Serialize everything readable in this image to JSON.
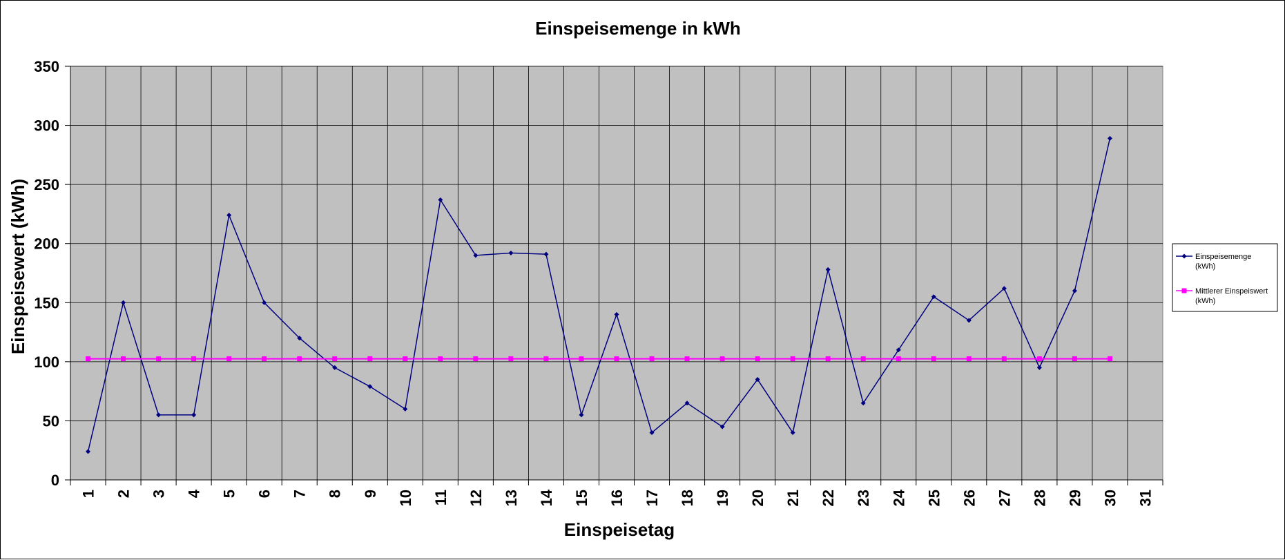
{
  "chart_data": {
    "type": "line",
    "title": "Einspeisemenge in kWh",
    "xlabel": "Einspeisetag",
    "ylabel": "Einspeisewert  (kWh)",
    "categories": [
      "1",
      "2",
      "3",
      "4",
      "5",
      "6",
      "7",
      "8",
      "9",
      "10",
      "11",
      "12",
      "13",
      "14",
      "15",
      "16",
      "17",
      "18",
      "19",
      "20",
      "21",
      "22",
      "23",
      "24",
      "25",
      "26",
      "27",
      "28",
      "29",
      "30",
      "31"
    ],
    "ylim": [
      0,
      350
    ],
    "yticks": [
      0,
      50,
      100,
      150,
      200,
      250,
      300,
      350
    ],
    "grid": true,
    "legend_position": "right",
    "plot_background": "#c0c0c0",
    "series": [
      {
        "name_lines": [
          "Einspeisemenge",
          "(kWh)"
        ],
        "color": "#000080",
        "marker": "diamond",
        "values": [
          24,
          150,
          55,
          55,
          224,
          150,
          120,
          95,
          79,
          60,
          237,
          190,
          192,
          191,
          55,
          140,
          40,
          65,
          45,
          85,
          40,
          178,
          65,
          110,
          155,
          135,
          162,
          95,
          160,
          289,
          null
        ]
      },
      {
        "name_lines": [
          "Mittlerer Einspeiswert",
          "(kWh)"
        ],
        "color": "#ff00ff",
        "marker": "square",
        "values": [
          102.5,
          102.5,
          102.5,
          102.5,
          102.5,
          102.5,
          102.5,
          102.5,
          102.5,
          102.5,
          102.5,
          102.5,
          102.5,
          102.5,
          102.5,
          102.5,
          102.5,
          102.5,
          102.5,
          102.5,
          102.5,
          102.5,
          102.5,
          102.5,
          102.5,
          102.5,
          102.5,
          102.5,
          102.5,
          102.5,
          null
        ]
      }
    ]
  }
}
